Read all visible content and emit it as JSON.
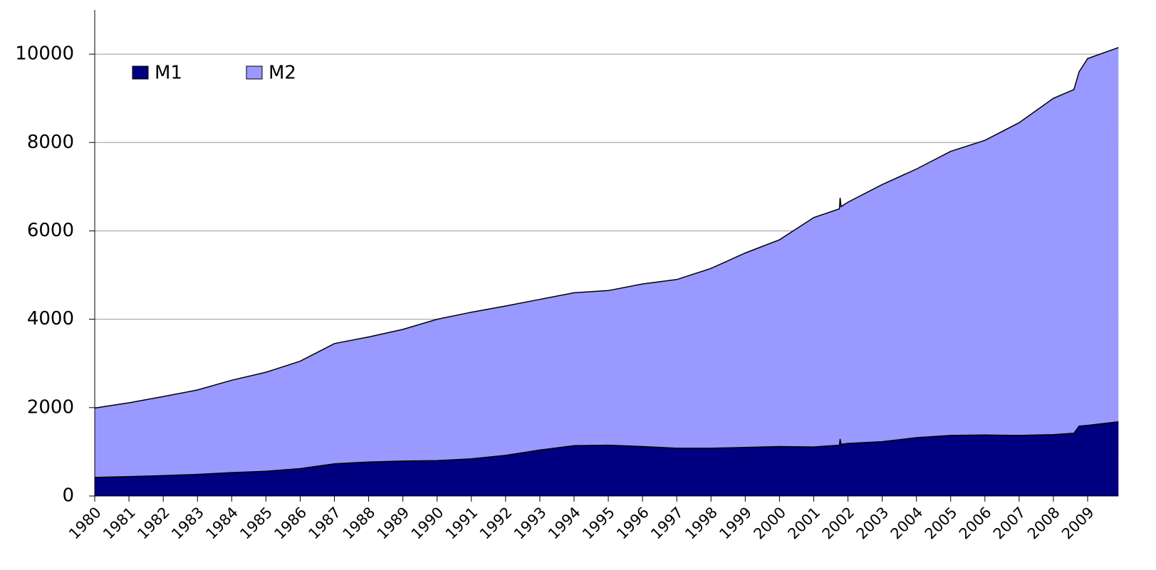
{
  "chart_data": {
    "type": "area",
    "x": [
      1980,
      1981,
      1982,
      1983,
      1984,
      1985,
      1986,
      1987,
      1988,
      1989,
      1990,
      1991,
      1992,
      1993,
      1994,
      1995,
      1996,
      1997,
      1998,
      1999,
      2000,
      2001,
      2001.75,
      2001.77,
      2001.8,
      2002,
      2003,
      2004,
      2005,
      2006,
      2007,
      2008,
      2008.6,
      2008.75,
      2009,
      2009.9
    ],
    "series": [
      {
        "name": "M2",
        "color": "#9999ff",
        "values": [
          1990,
          2110,
          2250,
          2400,
          2620,
          2800,
          3050,
          3450,
          3600,
          3770,
          4000,
          4160,
          4300,
          4450,
          4600,
          4650,
          4800,
          4900,
          5150,
          5500,
          5800,
          6300,
          6500,
          6750,
          6550,
          6650,
          7050,
          7400,
          7800,
          8050,
          8450,
          9000,
          9200,
          9600,
          9900,
          10150
        ]
      },
      {
        "name": "M1",
        "color": "#000080",
        "values": [
          420,
          440,
          460,
          490,
          530,
          560,
          620,
          730,
          770,
          790,
          800,
          840,
          920,
          1040,
          1140,
          1150,
          1120,
          1080,
          1080,
          1100,
          1120,
          1110,
          1150,
          1290,
          1170,
          1190,
          1230,
          1320,
          1370,
          1380,
          1370,
          1390,
          1420,
          1580,
          1600,
          1680
        ]
      }
    ],
    "legend_order": [
      "M1",
      "M2"
    ],
    "xlim": [
      1980,
      2009.9
    ],
    "xticks": [
      1980,
      1981,
      1982,
      1983,
      1984,
      1985,
      1986,
      1987,
      1988,
      1989,
      1990,
      1991,
      1992,
      1993,
      1994,
      1995,
      1996,
      1997,
      1998,
      1999,
      2000,
      2001,
      2002,
      2003,
      2004,
      2005,
      2006,
      2007,
      2008,
      2009
    ],
    "ylim": [
      0,
      11000
    ],
    "yticks": [
      0,
      2000,
      4000,
      6000,
      8000,
      10000
    ],
    "grid": true,
    "legend": "top-left"
  }
}
